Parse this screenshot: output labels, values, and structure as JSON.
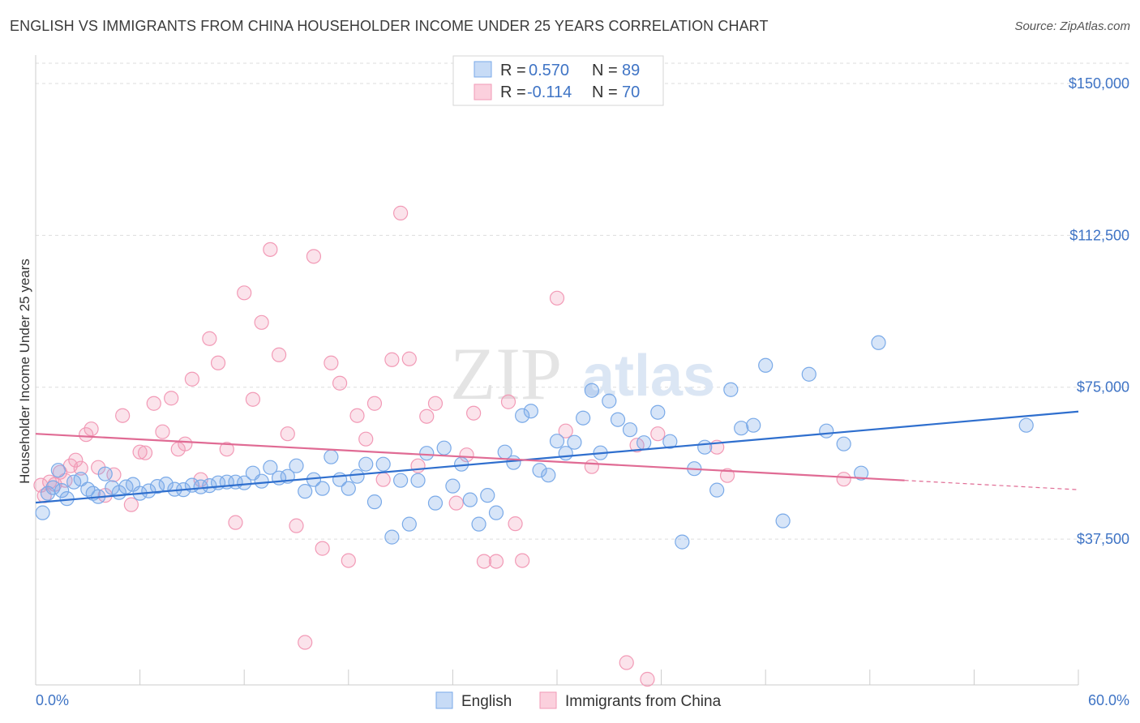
{
  "title": "ENGLISH VS IMMIGRANTS FROM CHINA HOUSEHOLDER INCOME UNDER 25 YEARS CORRELATION CHART",
  "source": "Source: ZipAtlas.com",
  "colors": {
    "english": "#7aaae8",
    "english_line": "#2f6fce",
    "china": "#f29ab6",
    "china_line": "#e06b94",
    "tick_text": "#3f74c5",
    "grid": "#dddddd"
  },
  "chart_data": {
    "type": "scatter",
    "title": "ENGLISH VS IMMIGRANTS FROM CHINA HOUSEHOLDER INCOME UNDER 25 YEARS CORRELATION CHART",
    "xlabel": "",
    "ylabel": "Householder Income Under 25 years",
    "xlim": [
      0,
      60
    ],
    "ylim": [
      1500,
      155000
    ],
    "x_tick_labels": [
      "0.0%",
      "60.0%"
    ],
    "y_ticks": [
      37500,
      75000,
      112500,
      150000
    ],
    "y_tick_labels": [
      "$37,500",
      "$75,000",
      "$112,500",
      "$150,000"
    ],
    "grid": true,
    "legend_position": "top-center",
    "stats": [
      {
        "r_label": "R =",
        "r_value": "0.570",
        "n_label": "N =",
        "n_value": "89"
      },
      {
        "r_label": "R =",
        "r_value": "-0.114",
        "n_label": "N =",
        "n_value": "70"
      }
    ],
    "series": [
      {
        "name": "English",
        "trend": {
          "x": [
            0,
            60
          ],
          "y": [
            46500,
            69000
          ]
        },
        "points": [
          [
            0.4,
            44000
          ],
          [
            0.7,
            48800
          ],
          [
            1.0,
            50200
          ],
          [
            1.3,
            54500
          ],
          [
            1.5,
            49500
          ],
          [
            1.8,
            47500
          ],
          [
            2.2,
            51600
          ],
          [
            2.6,
            52300
          ],
          [
            3.0,
            49800
          ],
          [
            3.3,
            48800
          ],
          [
            3.6,
            48000
          ],
          [
            4.0,
            53600
          ],
          [
            4.4,
            50200
          ],
          [
            4.8,
            49000
          ],
          [
            5.2,
            50400
          ],
          [
            5.6,
            51000
          ],
          [
            6.0,
            48800
          ],
          [
            6.5,
            49400
          ],
          [
            7.0,
            50500
          ],
          [
            7.5,
            51100
          ],
          [
            8.0,
            49800
          ],
          [
            8.5,
            49700
          ],
          [
            9.0,
            50800
          ],
          [
            9.5,
            50400
          ],
          [
            10.0,
            50700
          ],
          [
            10.5,
            51400
          ],
          [
            11.0,
            51600
          ],
          [
            11.5,
            51600
          ],
          [
            12.0,
            51400
          ],
          [
            12.5,
            53800
          ],
          [
            13.0,
            51800
          ],
          [
            13.5,
            55200
          ],
          [
            14.0,
            52600
          ],
          [
            14.5,
            53000
          ],
          [
            15.0,
            55600
          ],
          [
            15.5,
            49300
          ],
          [
            16.0,
            52200
          ],
          [
            16.5,
            50000
          ],
          [
            17.0,
            57800
          ],
          [
            17.5,
            52200
          ],
          [
            18.0,
            50000
          ],
          [
            18.5,
            53000
          ],
          [
            19.0,
            56000
          ],
          [
            19.5,
            46700
          ],
          [
            20.0,
            56000
          ],
          [
            20.5,
            38000
          ],
          [
            21.0,
            52000
          ],
          [
            21.5,
            41200
          ],
          [
            22.0,
            52000
          ],
          [
            22.5,
            58700
          ],
          [
            23.0,
            46400
          ],
          [
            23.5,
            60000
          ],
          [
            24.0,
            50600
          ],
          [
            24.5,
            56000
          ],
          [
            25.0,
            47200
          ],
          [
            25.5,
            41200
          ],
          [
            26.0,
            48300
          ],
          [
            26.5,
            44000
          ],
          [
            27.0,
            59000
          ],
          [
            27.5,
            56400
          ],
          [
            28.0,
            68000
          ],
          [
            28.5,
            69100
          ],
          [
            29.0,
            54500
          ],
          [
            29.5,
            53300
          ],
          [
            30.0,
            61700
          ],
          [
            30.5,
            58700
          ],
          [
            31.0,
            61400
          ],
          [
            31.5,
            67400
          ],
          [
            32.0,
            74200
          ],
          [
            32.5,
            58800
          ],
          [
            33.0,
            71600
          ],
          [
            33.5,
            67000
          ],
          [
            34.2,
            64500
          ],
          [
            35.0,
            61300
          ],
          [
            35.8,
            68800
          ],
          [
            36.5,
            61600
          ],
          [
            37.2,
            36800
          ],
          [
            37.9,
            54900
          ],
          [
            38.5,
            60200
          ],
          [
            39.2,
            49600
          ],
          [
            40.0,
            74400
          ],
          [
            40.6,
            64900
          ],
          [
            41.3,
            65600
          ],
          [
            42.0,
            80400
          ],
          [
            43.0,
            42000
          ],
          [
            44.5,
            78200
          ],
          [
            45.5,
            64200
          ],
          [
            46.5,
            61000
          ],
          [
            47.5,
            53800
          ],
          [
            48.5,
            86000
          ],
          [
            57.0,
            65600
          ]
        ]
      },
      {
        "name": "Immigrants from China",
        "trend": {
          "x": [
            0,
            50
          ],
          "y": [
            63500,
            52000
          ]
        },
        "trend_dashed": {
          "x": [
            50,
            60
          ],
          "y": [
            52000,
            49700
          ]
        },
        "points": [
          [
            0.3,
            50800
          ],
          [
            0.5,
            48200
          ],
          [
            0.8,
            51600
          ],
          [
            1.1,
            51000
          ],
          [
            1.4,
            54000
          ],
          [
            1.7,
            52000
          ],
          [
            2.0,
            55600
          ],
          [
            2.3,
            57000
          ],
          [
            2.6,
            55000
          ],
          [
            2.9,
            63300
          ],
          [
            3.2,
            64700
          ],
          [
            3.6,
            55200
          ],
          [
            4.0,
            48300
          ],
          [
            4.5,
            53400
          ],
          [
            5.0,
            68000
          ],
          [
            5.5,
            46000
          ],
          [
            6.0,
            59000
          ],
          [
            6.3,
            58800
          ],
          [
            6.8,
            71000
          ],
          [
            7.3,
            64000
          ],
          [
            7.8,
            72300
          ],
          [
            8.2,
            59700
          ],
          [
            8.6,
            61000
          ],
          [
            9.0,
            77000
          ],
          [
            9.5,
            52200
          ],
          [
            10.0,
            87000
          ],
          [
            10.5,
            81000
          ],
          [
            11.0,
            59700
          ],
          [
            11.5,
            41600
          ],
          [
            12.0,
            98300
          ],
          [
            12.5,
            72000
          ],
          [
            13.0,
            91000
          ],
          [
            13.5,
            109000
          ],
          [
            14.0,
            83000
          ],
          [
            14.5,
            63500
          ],
          [
            15.0,
            40800
          ],
          [
            15.5,
            12000
          ],
          [
            16.0,
            107300
          ],
          [
            16.5,
            35200
          ],
          [
            17.0,
            81000
          ],
          [
            17.5,
            76000
          ],
          [
            18.0,
            32200
          ],
          [
            18.5,
            68000
          ],
          [
            19.0,
            62200
          ],
          [
            19.5,
            71000
          ],
          [
            20.0,
            52200
          ],
          [
            20.5,
            81800
          ],
          [
            21.0,
            118000
          ],
          [
            21.5,
            82000
          ],
          [
            22.0,
            55600
          ],
          [
            22.5,
            67800
          ],
          [
            23.0,
            71000
          ],
          [
            24.2,
            46400
          ],
          [
            24.8,
            58300
          ],
          [
            25.2,
            68600
          ],
          [
            25.8,
            32000
          ],
          [
            26.5,
            32000
          ],
          [
            27.2,
            71400
          ],
          [
            27.6,
            41300
          ],
          [
            28.0,
            32200
          ],
          [
            30.0,
            97000
          ],
          [
            30.5,
            64200
          ],
          [
            32.0,
            55400
          ],
          [
            34.0,
            7000
          ],
          [
            34.6,
            60700
          ],
          [
            35.2,
            2900
          ],
          [
            35.8,
            63500
          ],
          [
            39.2,
            60200
          ],
          [
            39.8,
            53200
          ],
          [
            46.5,
            52300
          ]
        ]
      }
    ]
  },
  "legend": {
    "english": "English",
    "china": "Immigrants from China"
  },
  "watermark": {
    "zip": "ZIP",
    "atlas": "atlas"
  }
}
